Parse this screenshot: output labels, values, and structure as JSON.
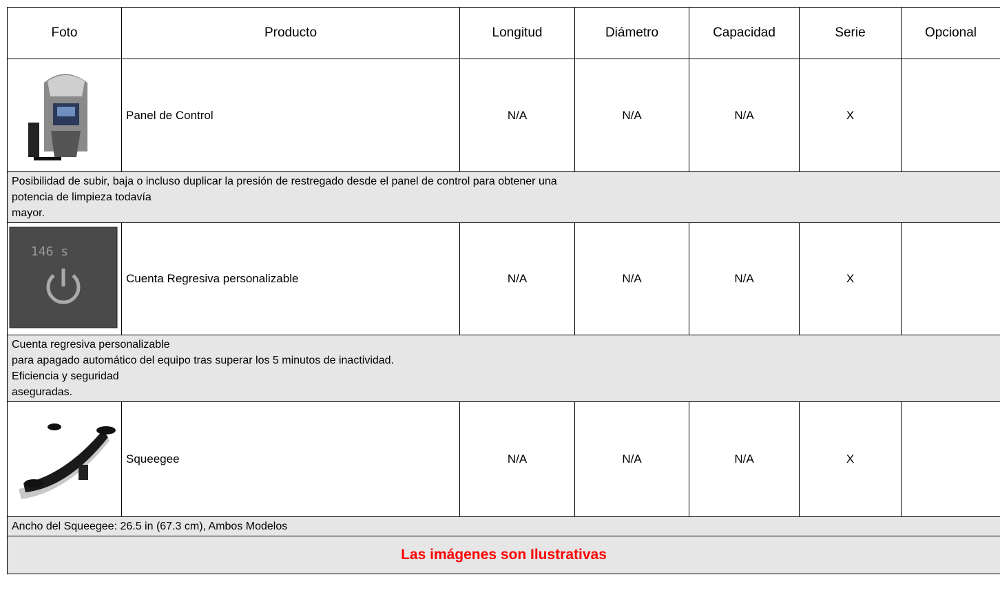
{
  "table": {
    "headers": [
      "Foto",
      "Producto",
      "Longitud",
      "Diámetro",
      "Capacidad",
      "Serie",
      "Opcional"
    ],
    "rows": [
      {
        "cells": [
          "Panel de Control",
          "N/A",
          "N/A",
          "N/A",
          "X"
        ],
        "description": [
          "Posibilidad de subir, baja o incluso duplicar la presión de restregado desde el panel de control para obtener una",
          "potencia de limpieza todavía",
          "mayor."
        ]
      },
      {
        "cells": [
          "Cuenta Regresiva personalizable",
          "N/A",
          "N/A",
          "N/A",
          "X"
        ],
        "photo_text": "146 s",
        "description": [
          "Cuenta regresiva personalizable",
          "para apagado automático del equipo tras superar los 5 minutos de inactividad.",
          "Eficiencia y seguridad",
          "aseguradas."
        ]
      },
      {
        "cells": [
          "Squeegee",
          "N/A",
          "N/A",
          "N/A",
          "X"
        ],
        "description": [
          "Ancho del Squeegee: 26.5 in (67.3 cm), Ambos Modelos"
        ]
      }
    ],
    "note": "Las imágenes son Ilustrativas"
  }
}
